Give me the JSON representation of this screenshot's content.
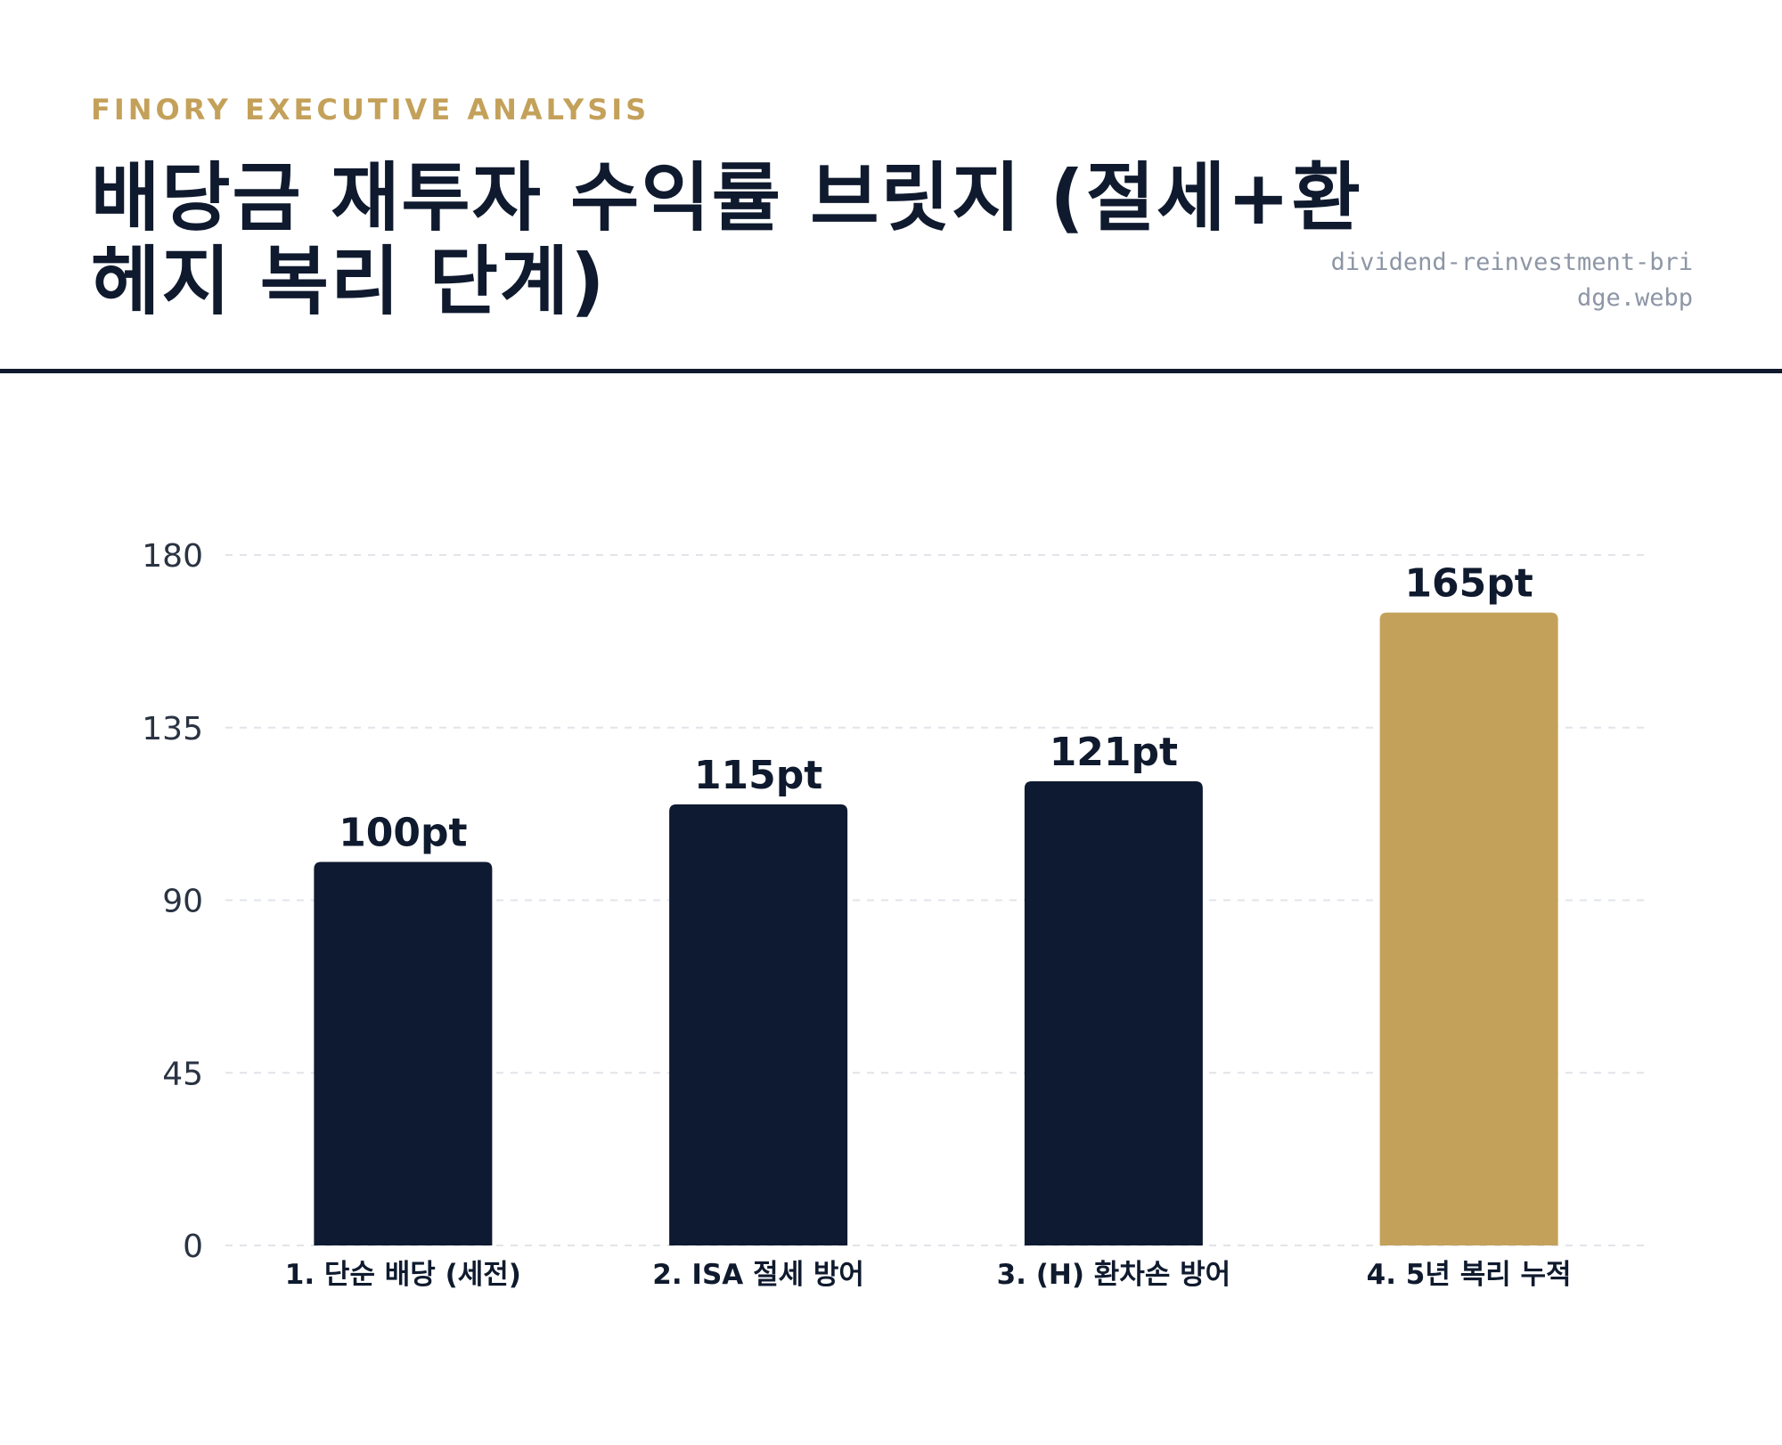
{
  "header": {
    "kicker": "FINORY EXECUTIVE ANALYSIS",
    "title": "배당금 재투자 수익률 브릿지 (절세+환헤지 복리 단계)",
    "filename": "dividend-reinvestment-bridge.webp"
  },
  "colors": {
    "navy": "#0e1a31",
    "gold": "#c4a15a",
    "grid": "#e1e4e9"
  },
  "chart_data": {
    "type": "bar",
    "categories": [
      "1. 단순 배당 (세전)",
      "2. ISA 절세 방어",
      "3. (H) 환차손 방어",
      "4. 5년 복리 누적"
    ],
    "values": [
      100,
      115,
      121,
      165
    ],
    "data_labels": [
      "100pt",
      "115pt",
      "121pt",
      "165pt"
    ],
    "bar_colors": [
      "#0e1a31",
      "#0e1a31",
      "#0e1a31",
      "#c4a15a"
    ],
    "yticks": [
      0,
      45,
      90,
      135,
      180
    ],
    "ylim": [
      0,
      180
    ],
    "grid": true,
    "grid_style": "dashed",
    "legend": "none"
  }
}
